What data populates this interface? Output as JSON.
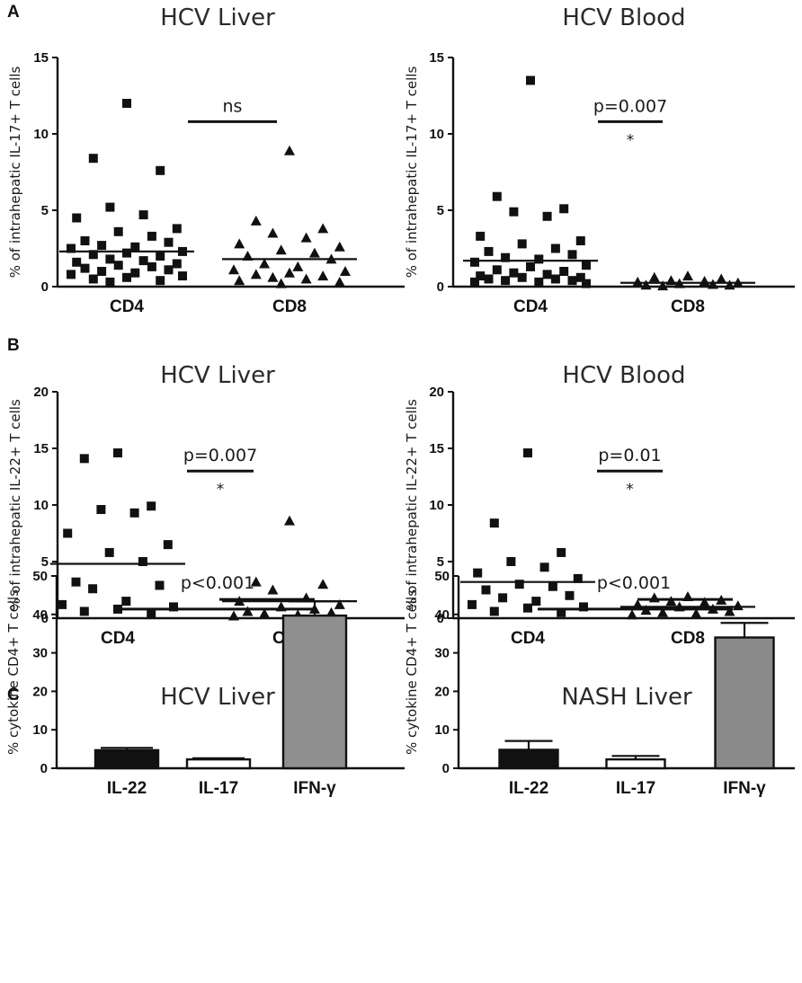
{
  "panel_letters": [
    "A",
    "B",
    "C"
  ],
  "chart_data": [
    {
      "panel": "A",
      "type": "scatter",
      "title": "HCV Liver",
      "ylabel": "% of intrahepatic IL-17+ T cells",
      "ylim": [
        0,
        15
      ],
      "yticks": [
        0,
        5,
        10,
        15
      ],
      "categories": [
        "CD4",
        "CD8"
      ],
      "series": [
        {
          "name": "CD4",
          "marker": "square",
          "mean": 2.3,
          "values": [
            12.0,
            8.4,
            7.6,
            5.2,
            4.7,
            4.5,
            3.8,
            3.6,
            3.3,
            3.0,
            2.9,
            2.7,
            2.6,
            2.5,
            2.3,
            2.2,
            2.1,
            2.0,
            1.8,
            1.7,
            1.6,
            1.5,
            1.4,
            1.3,
            1.2,
            1.1,
            1.0,
            0.9,
            0.8,
            0.7,
            0.6,
            0.5,
            0.4,
            0.3
          ]
        },
        {
          "name": "CD8",
          "marker": "triangle",
          "mean": 1.8,
          "values": [
            8.9,
            4.3,
            3.8,
            3.5,
            3.2,
            2.8,
            2.6,
            2.4,
            2.2,
            2.0,
            1.8,
            1.5,
            1.3,
            1.1,
            1.0,
            0.9,
            0.8,
            0.7,
            0.6,
            0.5,
            0.4,
            0.3,
            0.2
          ]
        }
      ],
      "annotations": {
        "label": "ns",
        "star": "",
        "bracket_y": 10.8
      }
    },
    {
      "panel": "A",
      "type": "scatter",
      "title": "HCV Blood",
      "ylabel": "% of intrahepatic IL-17+ T cells",
      "ylim": [
        0,
        15
      ],
      "yticks": [
        0,
        5,
        10,
        15
      ],
      "categories": [
        "CD4",
        "CD8"
      ],
      "series": [
        {
          "name": "CD4",
          "marker": "square",
          "mean": 1.7,
          "values": [
            13.5,
            5.9,
            5.1,
            4.9,
            4.6,
            3.3,
            3.0,
            2.8,
            2.5,
            2.3,
            2.1,
            1.9,
            1.8,
            1.6,
            1.4,
            1.3,
            1.1,
            1.0,
            0.9,
            0.8,
            0.7,
            0.6,
            0.6,
            0.5,
            0.5,
            0.4,
            0.4,
            0.3,
            0.3,
            0.2
          ]
        },
        {
          "name": "CD8",
          "marker": "triangle",
          "mean": 0.25,
          "values": [
            0.7,
            0.6,
            0.5,
            0.4,
            0.35,
            0.3,
            0.25,
            0.2,
            0.15,
            0.1,
            0.1,
            0.05
          ]
        }
      ],
      "annotations": {
        "label": "p=0.007",
        "star": "*",
        "bracket_y": 10.8
      }
    },
    {
      "panel": "B",
      "type": "scatter",
      "title": "HCV Liver",
      "ylabel": "% of intrahepatic IL-22+ T cells",
      "ylim": [
        0,
        20
      ],
      "yticks": [
        0,
        5,
        10,
        15,
        20
      ],
      "categories": [
        "CD4",
        "CD8"
      ],
      "series": [
        {
          "name": "CD4",
          "marker": "square",
          "mean": 4.8,
          "values": [
            14.6,
            14.1,
            9.9,
            9.6,
            9.3,
            7.5,
            6.5,
            5.8,
            5.0,
            3.2,
            2.9,
            2.6,
            1.5,
            1.2,
            1.0,
            0.8,
            0.6,
            0.4
          ]
        },
        {
          "name": "CD8",
          "marker": "triangle",
          "mean": 1.5,
          "values": [
            8.6,
            3.2,
            3.0,
            2.5,
            1.8,
            1.5,
            1.2,
            1.0,
            0.8,
            0.6,
            0.5,
            0.4,
            0.3,
            0.2
          ]
        }
      ],
      "annotations": {
        "label": "p=0.007",
        "star": "*",
        "bracket_y": 13.0
      }
    },
    {
      "panel": "B",
      "type": "scatter",
      "title": "HCV Blood",
      "ylabel": "% of intrahepatic IL-22+ T cells",
      "ylim": [
        0,
        20
      ],
      "yticks": [
        0,
        5,
        10,
        15,
        20
      ],
      "categories": [
        "CD4",
        "CD8"
      ],
      "series": [
        {
          "name": "CD4",
          "marker": "square",
          "mean": 3.2,
          "values": [
            14.6,
            8.4,
            5.8,
            5.0,
            4.5,
            4.0,
            3.5,
            3.0,
            2.8,
            2.5,
            2.0,
            1.8,
            1.5,
            1.2,
            1.0,
            0.9,
            0.6,
            0.5
          ]
        },
        {
          "name": "CD8",
          "marker": "triangle",
          "mean": 1.0,
          "values": [
            1.9,
            1.8,
            1.6,
            1.5,
            1.4,
            1.2,
            1.1,
            1.0,
            0.8,
            0.7,
            0.6,
            0.5,
            0.4,
            0.3
          ]
        }
      ],
      "annotations": {
        "label": "p=0.01",
        "star": "*",
        "bracket_y": 13.0
      }
    },
    {
      "panel": "C",
      "type": "bar",
      "title": "HCV Liver",
      "ylabel": "% cytokine CD4+ T cells",
      "ylim": [
        0,
        50
      ],
      "yticks": [
        0,
        10,
        20,
        30,
        40,
        50
      ],
      "categories": [
        "IL-22",
        "IL-17",
        "IFN-γ"
      ],
      "values": [
        4.7,
        2.3,
        39.7
      ],
      "errors": [
        0.6,
        0.3,
        3.7
      ],
      "colors": [
        "#111111",
        "#ffffff",
        "#8f8f8f"
      ],
      "annotations": {
        "label": "p<0.001",
        "long_bracket_y": 47.0,
        "short_bracket_y": 49.5
      }
    },
    {
      "panel": "C",
      "type": "bar",
      "title": "NASH Liver",
      "ylabel": "% cytokine CD4+ T cells",
      "ylim": [
        0,
        50
      ],
      "yticks": [
        0,
        10,
        20,
        30,
        40,
        50
      ],
      "categories": [
        "IL-22",
        "IL-17",
        "IFN-γ"
      ],
      "values": [
        4.8,
        2.3,
        34.0
      ],
      "errors": [
        2.3,
        0.9,
        3.8
      ],
      "colors": [
        "#111111",
        "#ffffff",
        "#8a8a8a"
      ],
      "annotations": {
        "label": "p<0.001",
        "long_bracket_y": 47.0,
        "short_bracket_y": 49.5
      }
    }
  ]
}
